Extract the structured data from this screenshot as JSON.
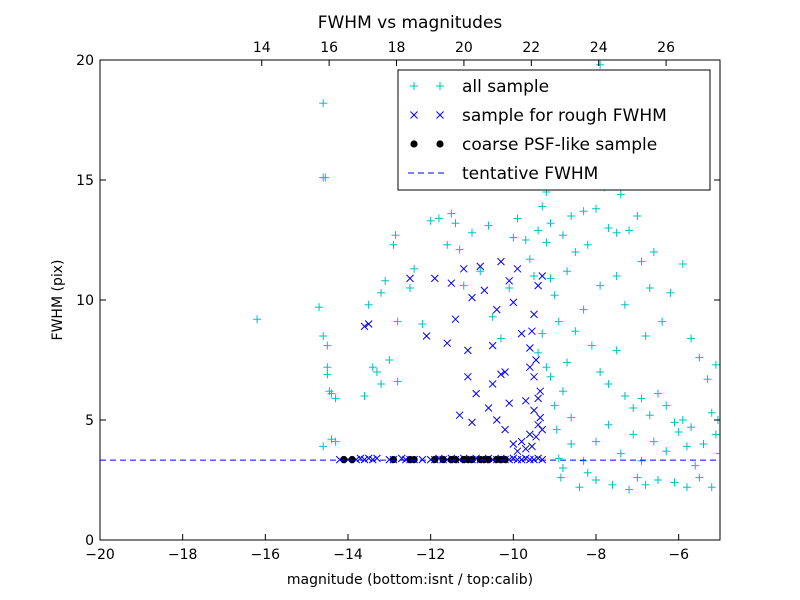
{
  "chart_data": {
    "type": "scatter",
    "title": "FWHM vs magnitudes",
    "xlabel": "magnitude (bottom:isnt / top:calib)",
    "ylabel": "FWHM (pix)",
    "xlim": [
      -20,
      -5
    ],
    "ylim": [
      0,
      20
    ],
    "x_ticks": [
      -20,
      -18,
      -16,
      -14,
      -12,
      -10,
      -8,
      -6
    ],
    "x_tick_labels": [
      "−20",
      "−18",
      "−16",
      "−14",
      "−12",
      "−10",
      "−8",
      "−6"
    ],
    "y_ticks": [
      0,
      5,
      10,
      15,
      20
    ],
    "y_tick_labels": [
      "0",
      "5",
      "10",
      "15",
      "20"
    ],
    "top_xlim": [
      9.2,
      27.6
    ],
    "top_x_ticks": [
      14,
      16,
      18,
      20,
      22,
      24,
      26
    ],
    "top_x_tick_labels": [
      "14",
      "16",
      "18",
      "20",
      "22",
      "24",
      "26"
    ],
    "grid": false,
    "legend_position": "top-right",
    "colors": {
      "all": "#00bfbf",
      "rough": "#0000ff",
      "psf": "#000000",
      "tentative": "#0000ff"
    },
    "series": [
      {
        "name": "all sample",
        "marker": "plus",
        "points": [
          [
            -16.2,
            9.2
          ],
          [
            -14.6,
            18.2
          ],
          [
            -14.6,
            15.1
          ],
          [
            -14.55,
            15.1
          ],
          [
            -14.7,
            9.7
          ],
          [
            -14.6,
            8.5
          ],
          [
            -14.5,
            8.1
          ],
          [
            -14.5,
            7.2
          ],
          [
            -14.5,
            6.9
          ],
          [
            -14.45,
            6.2
          ],
          [
            -14.4,
            6.1
          ],
          [
            -14.3,
            5.9
          ],
          [
            -14.6,
            3.9
          ],
          [
            -14.4,
            4.2
          ],
          [
            -14.3,
            4.1
          ],
          [
            -13.6,
            6.0
          ],
          [
            -13.5,
            9.8
          ],
          [
            -13.4,
            7.2
          ],
          [
            -13.3,
            7.0
          ],
          [
            -13.2,
            6.5
          ],
          [
            -13.2,
            10.3
          ],
          [
            -13.1,
            10.8
          ],
          [
            -13.0,
            7.5
          ],
          [
            -12.8,
            9.1
          ],
          [
            -12.8,
            6.6
          ],
          [
            -12.9,
            12.3
          ],
          [
            -12.85,
            12.7
          ],
          [
            -12.5,
            10.5
          ],
          [
            -12.4,
            11.3
          ],
          [
            -12.2,
            9.0
          ],
          [
            -12.0,
            13.3
          ],
          [
            -11.8,
            13.4
          ],
          [
            -11.6,
            12.3
          ],
          [
            -11.5,
            13.6
          ],
          [
            -11.4,
            13.2
          ],
          [
            -11.3,
            12.1
          ],
          [
            -11.2,
            10.6
          ],
          [
            -11.0,
            12.8
          ],
          [
            -10.8,
            11.2
          ],
          [
            -10.6,
            13.1
          ],
          [
            -10.5,
            9.3
          ],
          [
            -10.3,
            8.4
          ],
          [
            -10.1,
            10.5
          ],
          [
            -10.0,
            12.6
          ],
          [
            -9.9,
            13.4
          ],
          [
            -9.7,
            12.5
          ],
          [
            -9.6,
            11.7
          ],
          [
            -9.5,
            11.0
          ],
          [
            -9.4,
            12.9
          ],
          [
            -9.3,
            13.9
          ],
          [
            -9.2,
            14.5
          ],
          [
            -9.2,
            12.4
          ],
          [
            -9.1,
            13.2
          ],
          [
            -9.0,
            10.2
          ],
          [
            -8.9,
            15.2
          ],
          [
            -8.8,
            12.7
          ],
          [
            -8.6,
            13.5
          ],
          [
            -8.5,
            12.0
          ],
          [
            -8.4,
            16.6
          ],
          [
            -8.3,
            13.7
          ],
          [
            -8.2,
            12.3
          ],
          [
            -8.1,
            18.4
          ],
          [
            -8.0,
            13.8
          ],
          [
            -7.9,
            19.8
          ],
          [
            -7.8,
            14.7
          ],
          [
            -7.7,
            13.0
          ],
          [
            -7.6,
            15.2
          ],
          [
            -7.5,
            12.8
          ],
          [
            -7.4,
            14.4
          ],
          [
            -7.2,
            12.9
          ],
          [
            -7.0,
            13.5
          ],
          [
            -6.9,
            11.6
          ],
          [
            -6.6,
            12.0
          ],
          [
            -6.4,
            9.1
          ],
          [
            -6.2,
            10.3
          ],
          [
            -5.9,
            11.5
          ],
          [
            -5.7,
            8.4
          ],
          [
            -5.5,
            7.6
          ],
          [
            -5.3,
            6.7
          ],
          [
            -5.1,
            7.3
          ],
          [
            -9.4,
            7.8
          ],
          [
            -9.3,
            8.6
          ],
          [
            -9.2,
            7.2
          ],
          [
            -9.1,
            6.8
          ],
          [
            -9.0,
            5.6
          ],
          [
            -8.95,
            4.6
          ],
          [
            -8.9,
            3.4
          ],
          [
            -8.85,
            2.6
          ],
          [
            -8.8,
            3.0
          ],
          [
            -8.6,
            4.0
          ],
          [
            -8.4,
            2.2
          ],
          [
            -8.2,
            2.8
          ],
          [
            -8.0,
            2.5
          ],
          [
            -7.6,
            2.3
          ],
          [
            -7.2,
            2.1
          ],
          [
            -7.0,
            2.6
          ],
          [
            -6.8,
            2.3
          ],
          [
            -6.5,
            2.5
          ],
          [
            -6.1,
            2.4
          ],
          [
            -5.8,
            2.2
          ],
          [
            -5.5,
            2.6
          ],
          [
            -5.2,
            2.2
          ],
          [
            -5.0,
            3.6
          ],
          [
            -5.1,
            4.4
          ],
          [
            -5.05,
            5.0
          ],
          [
            -5.2,
            5.3
          ],
          [
            -5.4,
            4.0
          ],
          [
            -5.6,
            3.1
          ],
          [
            -5.8,
            3.9
          ],
          [
            -6.0,
            4.5
          ],
          [
            -6.3,
            3.7
          ],
          [
            -6.6,
            4.1
          ],
          [
            -6.9,
            3.3
          ],
          [
            -7.1,
            4.4
          ],
          [
            -7.4,
            3.6
          ],
          [
            -7.7,
            4.8
          ],
          [
            -8.0,
            4.1
          ],
          [
            -8.3,
            3.3
          ],
          [
            -8.6,
            5.1
          ],
          [
            -8.8,
            6.2
          ],
          [
            -8.7,
            7.4
          ],
          [
            -8.5,
            8.7
          ],
          [
            -8.3,
            9.6
          ],
          [
            -8.1,
            8.1
          ],
          [
            -7.9,
            7.0
          ],
          [
            -7.7,
            6.5
          ],
          [
            -7.5,
            7.9
          ],
          [
            -7.3,
            6.0
          ],
          [
            -7.1,
            5.5
          ],
          [
            -6.9,
            5.9
          ],
          [
            -6.7,
            5.2
          ],
          [
            -6.5,
            6.1
          ],
          [
            -6.3,
            5.6
          ],
          [
            -6.1,
            4.9
          ],
          [
            -5.9,
            5.0
          ],
          [
            -5.7,
            4.7
          ],
          [
            -6.7,
            10.5
          ],
          [
            -7.3,
            9.8
          ],
          [
            -8.9,
            9.1
          ],
          [
            -9.1,
            10.9
          ],
          [
            -8.7,
            11.2
          ],
          [
            -7.9,
            10.6
          ],
          [
            -7.5,
            11.0
          ],
          [
            -6.8,
            8.5
          ]
        ]
      },
      {
        "name": "sample for rough FWHM",
        "marker": "x",
        "points": [
          [
            -14.2,
            3.35
          ],
          [
            -14.0,
            3.35
          ],
          [
            -13.8,
            3.35
          ],
          [
            -13.7,
            3.4
          ],
          [
            -13.6,
            3.35
          ],
          [
            -13.5,
            3.4
          ],
          [
            -13.4,
            3.35
          ],
          [
            -13.3,
            3.4
          ],
          [
            -13.0,
            3.35
          ],
          [
            -12.9,
            3.35
          ],
          [
            -12.7,
            3.4
          ],
          [
            -12.6,
            3.35
          ],
          [
            -12.5,
            3.35
          ],
          [
            -12.4,
            3.35
          ],
          [
            -12.2,
            3.35
          ],
          [
            -12.0,
            3.35
          ],
          [
            -11.9,
            3.35
          ],
          [
            -11.8,
            3.4
          ],
          [
            -11.7,
            3.35
          ],
          [
            -11.6,
            3.35
          ],
          [
            -11.5,
            3.4
          ],
          [
            -11.4,
            3.35
          ],
          [
            -11.3,
            3.35
          ],
          [
            -11.2,
            3.4
          ],
          [
            -11.1,
            3.35
          ],
          [
            -11.0,
            3.35
          ],
          [
            -10.9,
            3.4
          ],
          [
            -10.8,
            3.35
          ],
          [
            -10.7,
            3.35
          ],
          [
            -10.6,
            3.4
          ],
          [
            -10.5,
            3.35
          ],
          [
            -10.4,
            3.35
          ],
          [
            -10.3,
            3.4
          ],
          [
            -10.2,
            3.35
          ],
          [
            -10.1,
            3.35
          ],
          [
            -10.0,
            3.4
          ],
          [
            -9.9,
            3.35
          ],
          [
            -9.8,
            3.35
          ],
          [
            -9.7,
            3.4
          ],
          [
            -9.6,
            3.35
          ],
          [
            -9.5,
            3.35
          ],
          [
            -9.4,
            3.4
          ],
          [
            -9.3,
            3.35
          ],
          [
            -13.6,
            8.9
          ],
          [
            -13.5,
            9.0
          ],
          [
            -12.5,
            10.9
          ],
          [
            -12.1,
            8.5
          ],
          [
            -11.9,
            10.9
          ],
          [
            -11.6,
            8.2
          ],
          [
            -11.5,
            10.7
          ],
          [
            -11.4,
            9.2
          ],
          [
            -11.2,
            11.3
          ],
          [
            -11.1,
            7.9
          ],
          [
            -11.0,
            10.1
          ],
          [
            -11.3,
            5.2
          ],
          [
            -11.1,
            6.8
          ],
          [
            -11.0,
            4.9
          ],
          [
            -10.9,
            6.1
          ],
          [
            -10.8,
            11.4
          ],
          [
            -10.7,
            10.4
          ],
          [
            -10.6,
            5.5
          ],
          [
            -10.5,
            8.1
          ],
          [
            -10.4,
            9.6
          ],
          [
            -10.3,
            11.6
          ],
          [
            -10.2,
            7.0
          ],
          [
            -10.1,
            10.8
          ],
          [
            -10.0,
            9.9
          ],
          [
            -9.9,
            11.3
          ],
          [
            -9.8,
            8.6
          ],
          [
            -9.7,
            5.8
          ],
          [
            -9.6,
            7.2
          ],
          [
            -9.5,
            9.4
          ],
          [
            -9.4,
            10.6
          ],
          [
            -9.3,
            11.0
          ],
          [
            -9.3,
            4.6
          ],
          [
            -9.35,
            5.1
          ],
          [
            -9.4,
            5.9
          ],
          [
            -9.45,
            4.3
          ],
          [
            -9.5,
            6.8
          ],
          [
            -9.55,
            3.9
          ],
          [
            -9.6,
            4.4
          ],
          [
            -9.7,
            3.8
          ],
          [
            -9.8,
            4.1
          ],
          [
            -9.9,
            3.7
          ],
          [
            -10.0,
            4.0
          ],
          [
            -10.1,
            5.7
          ],
          [
            -10.2,
            4.6
          ],
          [
            -10.3,
            6.9
          ],
          [
            -10.4,
            5.0
          ],
          [
            -10.5,
            6.5
          ],
          [
            -9.6,
            8.0
          ],
          [
            -9.5,
            5.4
          ],
          [
            -9.4,
            4.8
          ],
          [
            -9.35,
            6.2
          ],
          [
            -9.45,
            7.5
          ],
          [
            -9.55,
            8.7
          ]
        ]
      },
      {
        "name": "coarse PSF-like sample",
        "marker": "dot",
        "points": [
          [
            -14.1,
            3.35
          ],
          [
            -13.9,
            3.35
          ],
          [
            -12.9,
            3.35
          ],
          [
            -12.5,
            3.35
          ],
          [
            -12.4,
            3.35
          ],
          [
            -11.9,
            3.35
          ],
          [
            -11.7,
            3.35
          ],
          [
            -11.5,
            3.35
          ],
          [
            -11.4,
            3.35
          ],
          [
            -11.2,
            3.35
          ],
          [
            -11.1,
            3.35
          ],
          [
            -11.0,
            3.35
          ],
          [
            -10.8,
            3.35
          ],
          [
            -10.7,
            3.35
          ],
          [
            -10.6,
            3.35
          ],
          [
            -10.4,
            3.35
          ],
          [
            -10.3,
            3.35
          ],
          [
            -10.2,
            3.35
          ]
        ]
      }
    ],
    "reference_line": {
      "name": "tentative FWHM",
      "y": 3.33,
      "style": "dashed"
    }
  }
}
